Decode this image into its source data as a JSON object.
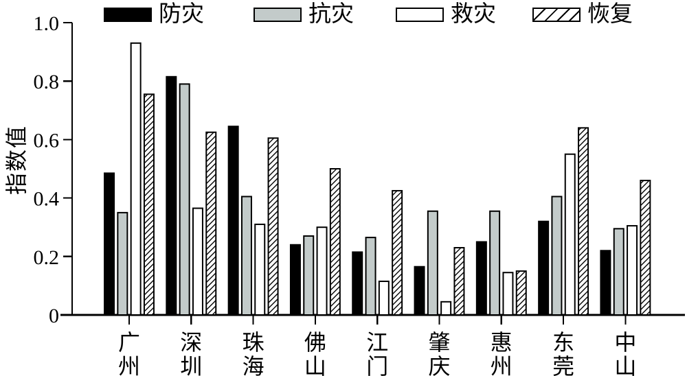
{
  "chart_data": {
    "type": "bar",
    "title": "",
    "ylabel": "指数值",
    "xlabel": "",
    "categories": [
      "广州",
      "深圳",
      "珠海",
      "佛山",
      "江门",
      "肇庆",
      "惠州",
      "东莞",
      "中山"
    ],
    "series": [
      {
        "name": "防灾",
        "fill": "#000000",
        "pattern": "solid",
        "values": [
          0.485,
          0.815,
          0.645,
          0.24,
          0.215,
          0.165,
          0.25,
          0.32,
          0.22
        ]
      },
      {
        "name": "抗灾",
        "fill": "#c3cbca",
        "pattern": "solid",
        "values": [
          0.35,
          0.79,
          0.405,
          0.27,
          0.265,
          0.355,
          0.355,
          0.405,
          0.295
        ]
      },
      {
        "name": "救灾",
        "fill": "#ffffff",
        "pattern": "solid",
        "values": [
          0.93,
          0.365,
          0.31,
          0.3,
          0.115,
          0.045,
          0.145,
          0.55,
          0.305
        ]
      },
      {
        "name": "恢复",
        "fill": "#ffffff",
        "pattern": "diagonal-hatch",
        "values": [
          0.755,
          0.625,
          0.605,
          0.5,
          0.425,
          0.23,
          0.15,
          0.64,
          0.46
        ]
      }
    ],
    "ylim": [
      0,
      1.0
    ],
    "yticks": [
      0,
      0.2,
      0.4,
      0.6,
      0.8,
      1.0
    ],
    "ytick_labels": [
      "0",
      "0.2",
      "0.4",
      "0.6",
      "0.8",
      "1.0"
    ],
    "grid": false,
    "legend_position": "top",
    "bar_outline": "#000000",
    "axis_color": "#000000"
  }
}
